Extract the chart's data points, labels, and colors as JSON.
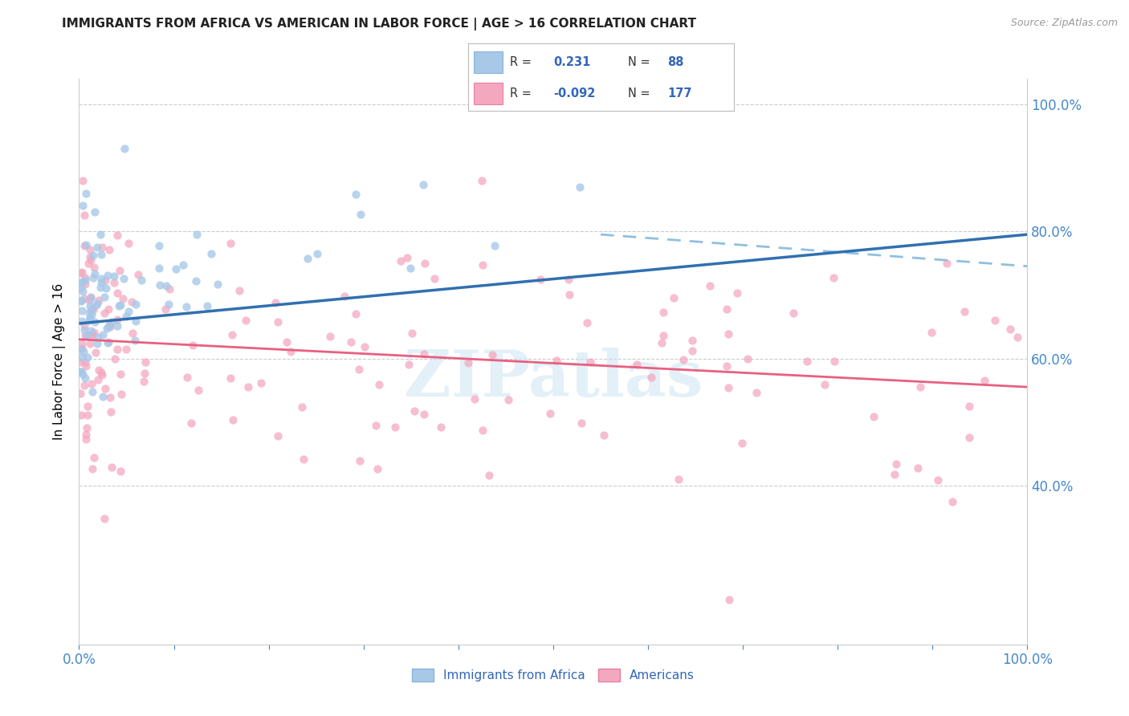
{
  "title": "IMMIGRANTS FROM AFRICA VS AMERICAN IN LABOR FORCE | AGE > 16 CORRELATION CHART",
  "source": "Source: ZipAtlas.com",
  "ylabel": "In Labor Force | Age > 16",
  "watermark": "ZIPatlas",
  "scatter_blue_color": "#a8c8e8",
  "scatter_pink_color": "#f4a8c0",
  "line_blue_color": "#3070b0",
  "line_pink_color": "#e86080",
  "dashed_line_color": "#90c0e0",
  "tick_color": "#4488cc",
  "title_color": "#222222",
  "background_color": "#ffffff",
  "legend_text_color": "#3366bb",
  "xmin": 0.0,
  "xmax": 1.0,
  "ymin": 0.15,
  "ymax": 1.04,
  "y_ticks": [
    0.4,
    0.6,
    0.8,
    1.0
  ],
  "blue_R": "0.231",
  "blue_N": "88",
  "pink_R": "-0.092",
  "pink_N": "177",
  "blue_line_x0": 0.0,
  "blue_line_y0": 0.655,
  "blue_line_x1": 1.0,
  "blue_line_y1": 0.795,
  "pink_line_x0": 0.0,
  "pink_line_y0": 0.63,
  "pink_line_x1": 1.0,
  "pink_line_y1": 0.555,
  "dashed_line_x0": 0.55,
  "dashed_line_y0": 0.795,
  "dashed_line_x1": 1.0,
  "dashed_line_y1": 0.745
}
